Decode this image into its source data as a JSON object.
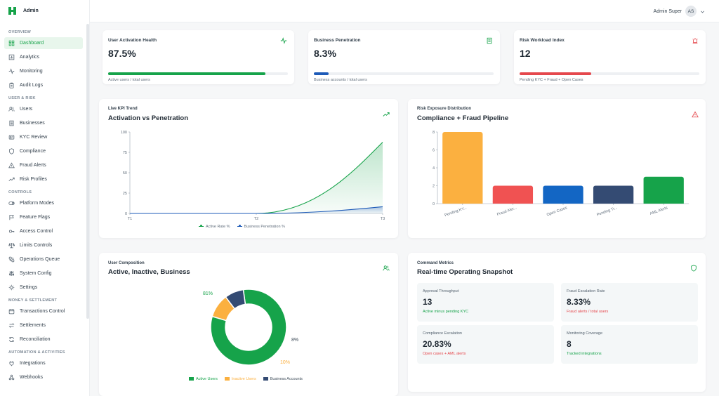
{
  "brand": {
    "name": "Admin",
    "color": "#16a34a"
  },
  "header": {
    "user_name": "Admin Super",
    "avatar_initials": "AS"
  },
  "sidebar": {
    "sections": [
      {
        "title": "OVERVIEW",
        "items": [
          {
            "label": "Dashboard",
            "icon": "grid-icon",
            "active": true
          },
          {
            "label": "Analytics",
            "icon": "bar-chart-icon"
          },
          {
            "label": "Monitoring",
            "icon": "activity-icon"
          },
          {
            "label": "Audit Logs",
            "icon": "clipboard-icon"
          }
        ]
      },
      {
        "title": "USER & RISK",
        "items": [
          {
            "label": "Users",
            "icon": "users-icon"
          },
          {
            "label": "Businesses",
            "icon": "building-icon"
          },
          {
            "label": "KYC Review",
            "icon": "id-card-icon"
          },
          {
            "label": "Compliance",
            "icon": "shield-icon"
          },
          {
            "label": "Fraud Alerts",
            "icon": "warning-icon"
          },
          {
            "label": "Risk Profiles",
            "icon": "trend-icon"
          }
        ]
      },
      {
        "title": "CONTROLS",
        "items": [
          {
            "label": "Platform Modes",
            "icon": "toggle-icon"
          },
          {
            "label": "Feature Flags",
            "icon": "flag-icon"
          },
          {
            "label": "Access Control",
            "icon": "key-icon"
          },
          {
            "label": "Limits Controls",
            "icon": "scale-icon"
          },
          {
            "label": "Operations Queue",
            "icon": "queue-icon"
          },
          {
            "label": "System Config",
            "icon": "sliders-icon"
          },
          {
            "label": "Settings",
            "icon": "gear-icon"
          }
        ]
      },
      {
        "title": "MONEY & SETTLEMENT",
        "items": [
          {
            "label": "Transactions Control",
            "icon": "calendar-icon"
          },
          {
            "label": "Settlements",
            "icon": "swap-icon"
          },
          {
            "label": "Reconciliation",
            "icon": "refresh-icon"
          }
        ]
      },
      {
        "title": "AUTOMATION & ACTIVITIES",
        "items": [
          {
            "label": "Integrations",
            "icon": "plug-icon"
          },
          {
            "label": "Webhooks",
            "icon": "webhook-icon"
          }
        ]
      }
    ]
  },
  "kpis": [
    {
      "title": "User Activation Health",
      "value": "87.5%",
      "sub": "Active users / total users",
      "progress": 0.875,
      "color": "#16a34a",
      "icon": "activity-icon"
    },
    {
      "title": "Business Penetration",
      "value": "8.3%",
      "sub": "Business accounts / total users",
      "progress": 0.083,
      "color": "#1e5bb8",
      "icon": "building-icon"
    },
    {
      "title": "Risk Workload Index",
      "value": "12",
      "sub": "Pending KYC + Fraud + Open Cases",
      "progress": 0.4,
      "color": "#e5484d",
      "icon": "alarm-icon"
    }
  ],
  "line_card": {
    "eyebrow": "Live KPI Trend",
    "title": "Activation vs Penetration"
  },
  "bar_card": {
    "eyebrow": "Risk Exposure Distribution",
    "title": "Compliance + Fraud Pipeline"
  },
  "pie_card": {
    "eyebrow": "User Composition",
    "title": "Active, Inactive, Business"
  },
  "metrics_card": {
    "eyebrow": "Command Metrics",
    "title": "Real-time Operating Snapshot",
    "metrics": [
      {
        "label": "Approval Throughput",
        "value": "13",
        "sub": "Active minus pending KYC",
        "sub_color": "#16a34a"
      },
      {
        "label": "Fraud Escalation Rate",
        "value": "8.33%",
        "sub": "Fraud alerts / total users",
        "sub_color": "#e5484d"
      },
      {
        "label": "Compliance Escalation",
        "value": "20.83%",
        "sub": "Open cases + AML alerts",
        "sub_color": "#e5484d"
      },
      {
        "label": "Monitoring Coverage",
        "value": "8",
        "sub": "Tracked integrations",
        "sub_color": "#16a34a"
      }
    ]
  },
  "chart_data": [
    {
      "type": "area",
      "categories": [
        "T1",
        "T2",
        "T3"
      ],
      "series": [
        {
          "name": "Active Rate %",
          "values": [
            0,
            0,
            87.5
          ],
          "color": "#16a34a"
        },
        {
          "name": "Business Penetration %",
          "values": [
            0,
            0,
            8.3
          ],
          "color": "#1e5bb8"
        }
      ],
      "ylim": [
        0,
        100
      ],
      "yticks": [
        0,
        25,
        50,
        75,
        100
      ],
      "legend": "bottom"
    },
    {
      "type": "bar",
      "categories": [
        "Pending KY...",
        "Fraud Aler...",
        "Open Cases",
        "Pending Tr...",
        "AML Alerts"
      ],
      "values": [
        8,
        2,
        2,
        2,
        3
      ],
      "colors": [
        "#fbb040",
        "#f05252",
        "#1366c4",
        "#344b73",
        "#16a34a"
      ],
      "ylim": [
        0,
        8
      ],
      "yticks": [
        0,
        2,
        4,
        6,
        8
      ]
    },
    {
      "type": "pie",
      "donut": true,
      "labels": [
        "Active Users",
        "Inactive Users",
        "Business Accounts"
      ],
      "values": [
        81,
        10,
        8
      ],
      "display_labels": [
        "81%",
        "10%",
        "8%"
      ],
      "colors": [
        "#16a34a",
        "#fbb040",
        "#344b73"
      ],
      "legend": "bottom"
    }
  ]
}
